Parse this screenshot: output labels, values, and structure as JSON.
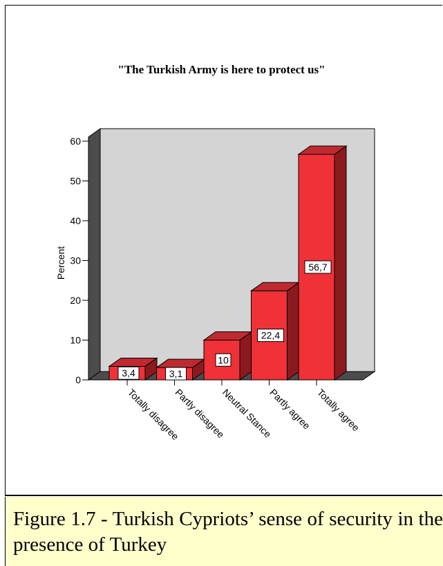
{
  "chart_data": {
    "type": "bar",
    "title": "\"The Turkish Army is here to protect us\"",
    "ylabel": "Percent",
    "xlabel": "",
    "categories": [
      "Totally disagree",
      "Partly disagree",
      "Neutral Stance",
      "Partly agree",
      "Totally agree"
    ],
    "values": [
      3.4,
      3.1,
      10,
      22.4,
      56.7
    ],
    "data_labels": [
      "3,4",
      "3,1",
      "10",
      "22,4",
      "56,7"
    ],
    "y_ticks": [
      0,
      10,
      20,
      30,
      40,
      50,
      60
    ],
    "ylim": [
      0,
      60
    ],
    "grid": false,
    "style": "3d",
    "colors": {
      "bar_front": "#f03137",
      "bar_side": "#8b1a1f",
      "bar_top": "#bf2a30",
      "back_wall": "#d4d4d4",
      "side_wall": "#4c4c4c",
      "floor": "#4c4c4c"
    }
  },
  "caption": {
    "text": "Figure 1.7 - Turkish Cypriots’ sense of security in the presence of Turkey",
    "background": "#ffffcc"
  }
}
